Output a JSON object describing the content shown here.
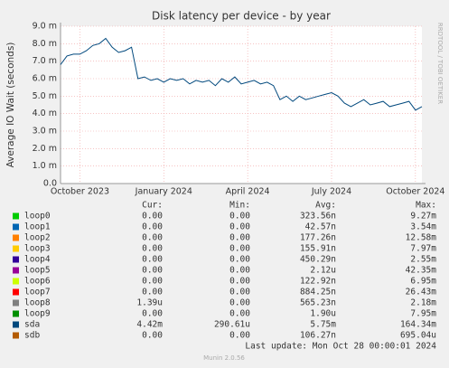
{
  "chart_data": {
    "type": "line",
    "title": "Disk latency per device - by year",
    "y_label": "Average IO Wait (seconds)",
    "side_label": "RRDTOOL / TOBI OETIKER",
    "ylim": [
      0,
      0.009
    ],
    "yticks": [
      {
        "value": 0,
        "label": "0.0"
      },
      {
        "value": 0.001,
        "label": "1.0 m"
      },
      {
        "value": 0.002,
        "label": "2.0 m"
      },
      {
        "value": 0.003,
        "label": "3.0 m"
      },
      {
        "value": 0.004,
        "label": "4.0 m"
      },
      {
        "value": 0.005,
        "label": "5.0 m"
      },
      {
        "value": 0.006,
        "label": "6.0 m"
      },
      {
        "value": 0.007,
        "label": "7.0 m"
      },
      {
        "value": 0.008,
        "label": "8.0 m"
      },
      {
        "value": 0.009,
        "label": "9.0 m"
      }
    ],
    "xlim": [
      0,
      56
    ],
    "xticks": [
      {
        "value": 3,
        "label": "October 2023"
      },
      {
        "value": 16,
        "label": "January 2024"
      },
      {
        "value": 29,
        "label": "April 2024"
      },
      {
        "value": 42,
        "label": "July 2024"
      },
      {
        "value": 55,
        "label": "October 2024"
      }
    ],
    "grid": true,
    "columns": [
      "Cur:",
      "Min:",
      "Avg:",
      "Max:"
    ],
    "series": [
      {
        "name": "loop0",
        "color": "#00cc00",
        "cur": "0.00",
        "min": "0.00",
        "avg": "323.56n",
        "max": "9.27m"
      },
      {
        "name": "loop1",
        "color": "#0066b3",
        "cur": "0.00",
        "min": "0.00",
        "avg": "42.57n",
        "max": "3.54m"
      },
      {
        "name": "loop2",
        "color": "#ff8000",
        "cur": "0.00",
        "min": "0.00",
        "avg": "177.26n",
        "max": "12.58m"
      },
      {
        "name": "loop3",
        "color": "#ffcc00",
        "cur": "0.00",
        "min": "0.00",
        "avg": "155.91n",
        "max": "7.97m"
      },
      {
        "name": "loop4",
        "color": "#330099",
        "cur": "0.00",
        "min": "0.00",
        "avg": "450.29n",
        "max": "2.55m"
      },
      {
        "name": "loop5",
        "color": "#990099",
        "cur": "0.00",
        "min": "0.00",
        "avg": "2.12u",
        "max": "42.35m"
      },
      {
        "name": "loop6",
        "color": "#ccff00",
        "cur": "0.00",
        "min": "0.00",
        "avg": "122.92n",
        "max": "6.95m"
      },
      {
        "name": "loop7",
        "color": "#ff0000",
        "cur": "0.00",
        "min": "0.00",
        "avg": "884.25n",
        "max": "26.43m"
      },
      {
        "name": "loop8",
        "color": "#808080",
        "cur": "1.39u",
        "min": "0.00",
        "avg": "565.23n",
        "max": "2.18m"
      },
      {
        "name": "loop9",
        "color": "#008f00",
        "cur": "0.00",
        "min": "0.00",
        "avg": "1.90u",
        "max": "7.95m"
      },
      {
        "name": "sda",
        "color": "#00487d",
        "cur": "4.42m",
        "min": "290.61u",
        "avg": "5.75m",
        "max": "164.34m",
        "values": [
          0.0068,
          0.0073,
          0.0074,
          0.0074,
          0.0076,
          0.0079,
          0.008,
          0.0083,
          0.0078,
          0.0075,
          0.0076,
          0.0078,
          0.006,
          0.0061,
          0.0059,
          0.006,
          0.0058,
          0.006,
          0.0059,
          0.006,
          0.0057,
          0.0059,
          0.0058,
          0.0059,
          0.0056,
          0.006,
          0.0058,
          0.0061,
          0.0057,
          0.0058,
          0.0059,
          0.0057,
          0.0058,
          0.0056,
          0.0048,
          0.005,
          0.0047,
          0.005,
          0.0048,
          0.0049,
          0.005,
          0.0051,
          0.0052,
          0.005,
          0.0046,
          0.0044,
          0.0046,
          0.0048,
          0.0045,
          0.0046,
          0.0047,
          0.0044,
          0.0045,
          0.0046,
          0.0047,
          0.0042,
          0.0044
        ]
      },
      {
        "name": "sdb",
        "color": "#b35a00",
        "cur": "0.00",
        "min": "0.00",
        "avg": "106.27n",
        "max": "695.04u"
      }
    ],
    "last_update": "Last update: Mon Oct 28 00:00:01 2024",
    "footer": "Munin 2.0.56"
  }
}
